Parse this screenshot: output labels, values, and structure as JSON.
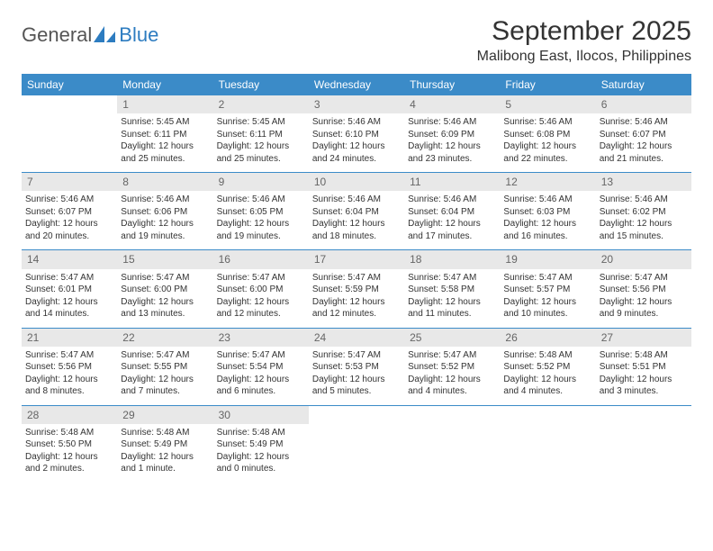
{
  "logo": {
    "text_a": "General",
    "text_b": "Blue"
  },
  "header": {
    "month": "September 2025",
    "location": "Malibong East, Ilocos, Philippines"
  },
  "weekdays": [
    "Sunday",
    "Monday",
    "Tuesday",
    "Wednesday",
    "Thursday",
    "Friday",
    "Saturday"
  ],
  "colors": {
    "header_bg": "#3b8bc8",
    "header_fg": "#ffffff",
    "daynum_bg": "#e8e8e8",
    "daynum_fg": "#666666",
    "text": "#333333",
    "rule": "#3b8bc8",
    "logo_blue": "#2d7cc0"
  },
  "weeks": [
    [
      {
        "n": "",
        "sr": "",
        "ss": "",
        "dl1": "",
        "dl2": ""
      },
      {
        "n": "1",
        "sr": "Sunrise: 5:45 AM",
        "ss": "Sunset: 6:11 PM",
        "dl1": "Daylight: 12 hours",
        "dl2": "and 25 minutes."
      },
      {
        "n": "2",
        "sr": "Sunrise: 5:45 AM",
        "ss": "Sunset: 6:11 PM",
        "dl1": "Daylight: 12 hours",
        "dl2": "and 25 minutes."
      },
      {
        "n": "3",
        "sr": "Sunrise: 5:46 AM",
        "ss": "Sunset: 6:10 PM",
        "dl1": "Daylight: 12 hours",
        "dl2": "and 24 minutes."
      },
      {
        "n": "4",
        "sr": "Sunrise: 5:46 AM",
        "ss": "Sunset: 6:09 PM",
        "dl1": "Daylight: 12 hours",
        "dl2": "and 23 minutes."
      },
      {
        "n": "5",
        "sr": "Sunrise: 5:46 AM",
        "ss": "Sunset: 6:08 PM",
        "dl1": "Daylight: 12 hours",
        "dl2": "and 22 minutes."
      },
      {
        "n": "6",
        "sr": "Sunrise: 5:46 AM",
        "ss": "Sunset: 6:07 PM",
        "dl1": "Daylight: 12 hours",
        "dl2": "and 21 minutes."
      }
    ],
    [
      {
        "n": "7",
        "sr": "Sunrise: 5:46 AM",
        "ss": "Sunset: 6:07 PM",
        "dl1": "Daylight: 12 hours",
        "dl2": "and 20 minutes."
      },
      {
        "n": "8",
        "sr": "Sunrise: 5:46 AM",
        "ss": "Sunset: 6:06 PM",
        "dl1": "Daylight: 12 hours",
        "dl2": "and 19 minutes."
      },
      {
        "n": "9",
        "sr": "Sunrise: 5:46 AM",
        "ss": "Sunset: 6:05 PM",
        "dl1": "Daylight: 12 hours",
        "dl2": "and 19 minutes."
      },
      {
        "n": "10",
        "sr": "Sunrise: 5:46 AM",
        "ss": "Sunset: 6:04 PM",
        "dl1": "Daylight: 12 hours",
        "dl2": "and 18 minutes."
      },
      {
        "n": "11",
        "sr": "Sunrise: 5:46 AM",
        "ss": "Sunset: 6:04 PM",
        "dl1": "Daylight: 12 hours",
        "dl2": "and 17 minutes."
      },
      {
        "n": "12",
        "sr": "Sunrise: 5:46 AM",
        "ss": "Sunset: 6:03 PM",
        "dl1": "Daylight: 12 hours",
        "dl2": "and 16 minutes."
      },
      {
        "n": "13",
        "sr": "Sunrise: 5:46 AM",
        "ss": "Sunset: 6:02 PM",
        "dl1": "Daylight: 12 hours",
        "dl2": "and 15 minutes."
      }
    ],
    [
      {
        "n": "14",
        "sr": "Sunrise: 5:47 AM",
        "ss": "Sunset: 6:01 PM",
        "dl1": "Daylight: 12 hours",
        "dl2": "and 14 minutes."
      },
      {
        "n": "15",
        "sr": "Sunrise: 5:47 AM",
        "ss": "Sunset: 6:00 PM",
        "dl1": "Daylight: 12 hours",
        "dl2": "and 13 minutes."
      },
      {
        "n": "16",
        "sr": "Sunrise: 5:47 AM",
        "ss": "Sunset: 6:00 PM",
        "dl1": "Daylight: 12 hours",
        "dl2": "and 12 minutes."
      },
      {
        "n": "17",
        "sr": "Sunrise: 5:47 AM",
        "ss": "Sunset: 5:59 PM",
        "dl1": "Daylight: 12 hours",
        "dl2": "and 12 minutes."
      },
      {
        "n": "18",
        "sr": "Sunrise: 5:47 AM",
        "ss": "Sunset: 5:58 PM",
        "dl1": "Daylight: 12 hours",
        "dl2": "and 11 minutes."
      },
      {
        "n": "19",
        "sr": "Sunrise: 5:47 AM",
        "ss": "Sunset: 5:57 PM",
        "dl1": "Daylight: 12 hours",
        "dl2": "and 10 minutes."
      },
      {
        "n": "20",
        "sr": "Sunrise: 5:47 AM",
        "ss": "Sunset: 5:56 PM",
        "dl1": "Daylight: 12 hours",
        "dl2": "and 9 minutes."
      }
    ],
    [
      {
        "n": "21",
        "sr": "Sunrise: 5:47 AM",
        "ss": "Sunset: 5:56 PM",
        "dl1": "Daylight: 12 hours",
        "dl2": "and 8 minutes."
      },
      {
        "n": "22",
        "sr": "Sunrise: 5:47 AM",
        "ss": "Sunset: 5:55 PM",
        "dl1": "Daylight: 12 hours",
        "dl2": "and 7 minutes."
      },
      {
        "n": "23",
        "sr": "Sunrise: 5:47 AM",
        "ss": "Sunset: 5:54 PM",
        "dl1": "Daylight: 12 hours",
        "dl2": "and 6 minutes."
      },
      {
        "n": "24",
        "sr": "Sunrise: 5:47 AM",
        "ss": "Sunset: 5:53 PM",
        "dl1": "Daylight: 12 hours",
        "dl2": "and 5 minutes."
      },
      {
        "n": "25",
        "sr": "Sunrise: 5:47 AM",
        "ss": "Sunset: 5:52 PM",
        "dl1": "Daylight: 12 hours",
        "dl2": "and 4 minutes."
      },
      {
        "n": "26",
        "sr": "Sunrise: 5:48 AM",
        "ss": "Sunset: 5:52 PM",
        "dl1": "Daylight: 12 hours",
        "dl2": "and 4 minutes."
      },
      {
        "n": "27",
        "sr": "Sunrise: 5:48 AM",
        "ss": "Sunset: 5:51 PM",
        "dl1": "Daylight: 12 hours",
        "dl2": "and 3 minutes."
      }
    ],
    [
      {
        "n": "28",
        "sr": "Sunrise: 5:48 AM",
        "ss": "Sunset: 5:50 PM",
        "dl1": "Daylight: 12 hours",
        "dl2": "and 2 minutes."
      },
      {
        "n": "29",
        "sr": "Sunrise: 5:48 AM",
        "ss": "Sunset: 5:49 PM",
        "dl1": "Daylight: 12 hours",
        "dl2": "and 1 minute."
      },
      {
        "n": "30",
        "sr": "Sunrise: 5:48 AM",
        "ss": "Sunset: 5:49 PM",
        "dl1": "Daylight: 12 hours",
        "dl2": "and 0 minutes."
      },
      {
        "n": "",
        "sr": "",
        "ss": "",
        "dl1": "",
        "dl2": ""
      },
      {
        "n": "",
        "sr": "",
        "ss": "",
        "dl1": "",
        "dl2": ""
      },
      {
        "n": "",
        "sr": "",
        "ss": "",
        "dl1": "",
        "dl2": ""
      },
      {
        "n": "",
        "sr": "",
        "ss": "",
        "dl1": "",
        "dl2": ""
      }
    ]
  ]
}
